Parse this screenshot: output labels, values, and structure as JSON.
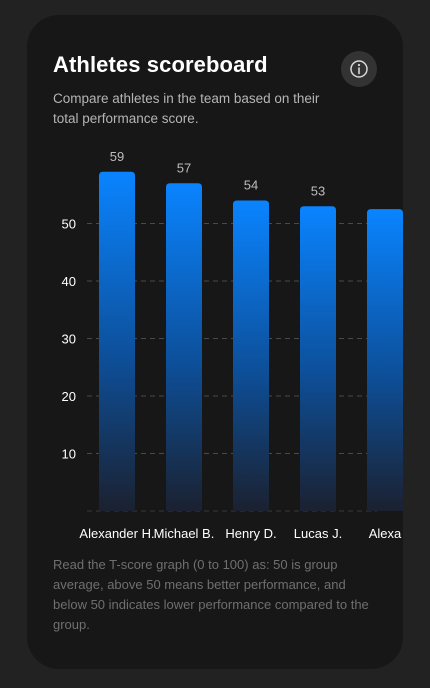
{
  "card": {
    "title": "Athletes scoreboard",
    "subtitle": "Compare athletes in the team based on their total performance score.",
    "footnote": "Read the T-score graph (0 to 100) as: 50 is group average, above 50 means better performance, and below 50 indicates lower performance compared to the group.",
    "info_icon": "info-icon"
  },
  "colors": {
    "card_bg": "#171717",
    "bar_top": "#0a84ff",
    "bar_bottom": "#1a1f2a",
    "gridline": "#4a4a4a"
  },
  "chart_data": {
    "type": "bar",
    "categories": [
      "Alexander H.",
      "Michael B.",
      "Henry D.",
      "Lucas J.",
      "Alexa"
    ],
    "values": [
      59,
      57,
      54,
      53,
      52.5
    ],
    "value_labels": [
      "59",
      "57",
      "54",
      "53",
      ""
    ],
    "yticks": [
      10,
      20,
      30,
      40,
      50
    ],
    "ylim": [
      0,
      60
    ],
    "grid": true
  }
}
